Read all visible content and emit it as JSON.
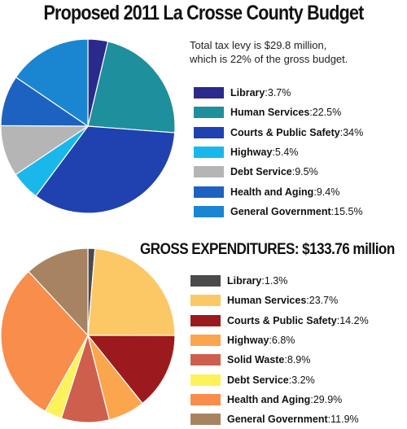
{
  "title": "Proposed 2011 La Crosse County Budget",
  "note": {
    "line1": "Total tax levy is $29.8 million,",
    "line2": "which is 22% of the gross budget."
  },
  "gross_title": "GROSS EXPENDITURES: $133.76 million",
  "chart_data": [
    {
      "type": "pie",
      "title": "",
      "slices": [
        {
          "label": "Library",
          "value": 3.7,
          "display": "3.7%",
          "color": "#2a2a8c"
        },
        {
          "label": "Human Services",
          "value": 22.5,
          "display": "22.5%",
          "color": "#1e8f9c"
        },
        {
          "label": "Courts & Public Safety",
          "value": 34,
          "display": "34%",
          "color": "#1f42b0"
        },
        {
          "label": "Highway",
          "value": 5.4,
          "display": "5.4%",
          "color": "#1ab8ea"
        },
        {
          "label": "Debt Service",
          "value": 9.5,
          "display": "9.5%",
          "color": "#b5b5b5"
        },
        {
          "label": "Health and Aging",
          "value": 9.4,
          "display": "9.4%",
          "color": "#1d62c0"
        },
        {
          "label": "General Government",
          "value": 15.5,
          "display": "15.5%",
          "color": "#1a86d2"
        }
      ]
    },
    {
      "type": "pie",
      "title": "GROSS EXPENDITURES: $133.76 million",
      "slices": [
        {
          "label": "Library",
          "value": 1.3,
          "display": "1.3%",
          "color": "#4a4a4a"
        },
        {
          "label": "Human Services",
          "value": 23.7,
          "display": "23.7%",
          "color": "#fcc865"
        },
        {
          "label": "Courts & Public Safety",
          "value": 14.2,
          "display": "14.2%",
          "color": "#9c1a1e"
        },
        {
          "label": "Highway",
          "value": 6.8,
          "display": "6.8%",
          "color": "#fba54d"
        },
        {
          "label": "Solid Waste",
          "value": 8.9,
          "display": "8.9%",
          "color": "#cf5f4d"
        },
        {
          "label": "Debt Service",
          "value": 3.2,
          "display": "3.2%",
          "color": "#fdf25a"
        },
        {
          "label": "Health and Aging",
          "value": 29.9,
          "display": "29.9%",
          "color": "#f98d4c"
        },
        {
          "label": "General Government",
          "value": 11.9,
          "display": "11.9%",
          "color": "#a88361"
        }
      ]
    }
  ]
}
